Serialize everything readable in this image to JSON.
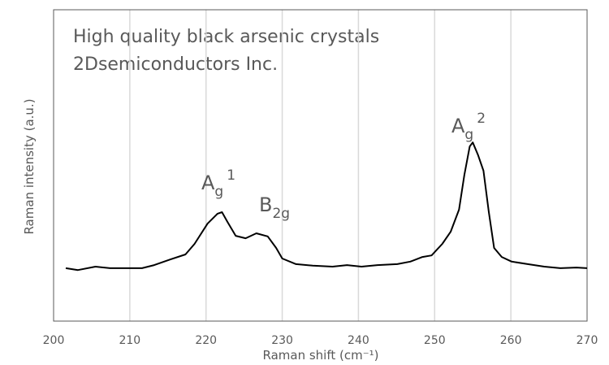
{
  "chart_data": {
    "type": "line",
    "title_lines": [
      "High quality black arsenic crystals",
      "2Dsemiconductors Inc."
    ],
    "x_label": "Raman shift (cm⁻¹)",
    "y_label": "Raman intensity (a.u.)",
    "x": [
      201.6,
      203.2,
      205.5,
      207.4,
      211.6,
      213.2,
      215.3,
      217.3,
      218.5,
      220.2,
      221.5,
      222.1,
      222.8,
      223.9,
      225.2,
      226.6,
      228.1,
      229.2,
      230.0,
      231.8,
      234.0,
      236.6,
      238.5,
      240.4,
      242.5,
      245.1,
      246.8,
      248.4,
      249.6,
      251.0,
      252.1,
      253.2,
      253.9,
      254.6,
      255.0,
      255.7,
      256.4,
      257.1,
      257.8,
      258.8,
      260.1,
      262.2,
      264.4,
      266.5,
      268.6,
      270.0
    ],
    "values": [
      17,
      16.4,
      17.5,
      17,
      17,
      18,
      19.8,
      21.4,
      24.8,
      31.3,
      34.5,
      35,
      31.9,
      27.4,
      26.6,
      28.2,
      27.2,
      23.5,
      20.1,
      18.3,
      17.8,
      17.5,
      18,
      17.5,
      18,
      18.3,
      19.1,
      20.6,
      21.1,
      24.8,
      28.7,
      35.8,
      47,
      56.1,
      57.4,
      53.3,
      48.3,
      35.2,
      23.5,
      20.6,
      19.1,
      18.3,
      17.5,
      17,
      17.2,
      17
    ],
    "color": "#000000",
    "xlim": [
      200,
      270
    ],
    "xticks": [
      200,
      210,
      220,
      230,
      240,
      250,
      260,
      270
    ],
    "ylim": [
      0,
      100
    ],
    "grid": true,
    "annotations": [
      {
        "text": "A",
        "sub": "g",
        "sup": "1"
      },
      {
        "text": "B",
        "sub": "2g"
      },
      {
        "text": "A",
        "sub": "g",
        "sup": "2"
      }
    ]
  }
}
